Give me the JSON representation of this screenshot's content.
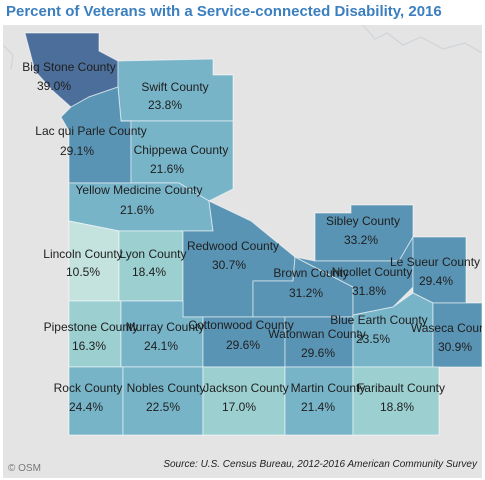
{
  "header": {
    "title": "Percent of Veterans with a Service-connected Disability, 2016"
  },
  "map": {
    "colors": {
      "lightest": "#c5e3de",
      "light": "#9ccfd0",
      "medium": "#78b4c8",
      "dark": "#5a94b4",
      "darkest": "#4c6e9a",
      "outside": "#e4e4e4"
    },
    "counties": [
      {
        "name": "Big Stone County",
        "value": "39.0%"
      },
      {
        "name": "Swift County",
        "value": "23.8%"
      },
      {
        "name": "Lac qui Parle County",
        "value": "29.1%"
      },
      {
        "name": "Chippewa County",
        "value": "21.6%"
      },
      {
        "name": "Yellow Medicine County",
        "value": "21.6%"
      },
      {
        "name": "Lincoln County",
        "value": "10.5%"
      },
      {
        "name": "Lyon County",
        "value": "18.4%"
      },
      {
        "name": "Redwood County",
        "value": "30.7%"
      },
      {
        "name": "Sibley County",
        "value": "33.2%"
      },
      {
        "name": "Brown County",
        "value": "31.2%"
      },
      {
        "name": "Nicollet County",
        "value": "31.8%"
      },
      {
        "name": "Le Sueur County",
        "value": "29.4%"
      },
      {
        "name": "Pipestone County",
        "value": "16.3%"
      },
      {
        "name": "Murray County",
        "value": "24.1%"
      },
      {
        "name": "Cottonwood County",
        "value": "29.6%"
      },
      {
        "name": "Watonwan County",
        "value": "29.6%"
      },
      {
        "name": "Blue Earth County",
        "value": "23.5%"
      },
      {
        "name": "Waseca County",
        "value": "30.9%"
      },
      {
        "name": "Rock County",
        "value": "24.4%"
      },
      {
        "name": "Nobles County",
        "value": "22.5%"
      },
      {
        "name": "Jackson County",
        "value": "17.0%"
      },
      {
        "name": "Martin County",
        "value": "21.4%"
      },
      {
        "name": "Faribault County",
        "value": "18.8%"
      }
    ]
  },
  "footer": {
    "attribution": "© OSM",
    "source": "Source: U.S. Census Bureau, 2012-2016 American Community Survey"
  }
}
